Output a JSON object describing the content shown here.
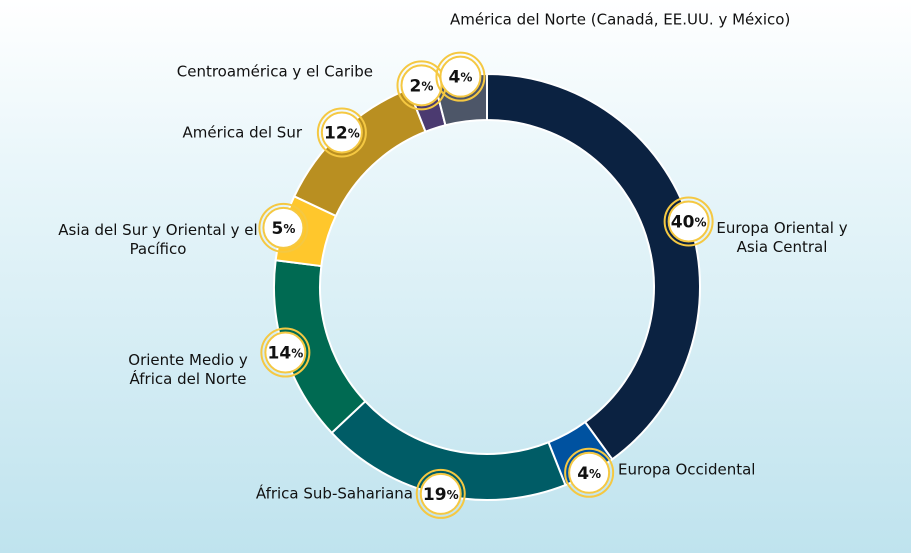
{
  "chart_data": {
    "type": "donut",
    "categories": [
      "Europa Oriental y Asia Central",
      "Europa Occidental",
      "África Sub-Sahariana",
      "Oriente Medio y África del Norte",
      "Asia del Sur y Oriental y el Pacífico",
      "América del Sur",
      "Centroamérica y el Caribe",
      "América del Norte (Canadá, EE.UU. y México)"
    ],
    "values": [
      40,
      4,
      19,
      14,
      5,
      12,
      2,
      4
    ],
    "value_labels": [
      "40%",
      "4%",
      "19%",
      "14%",
      "5%",
      "12%",
      "2%",
      "4%"
    ],
    "colors": [
      "#0b2241",
      "#0052a0",
      "#005c66",
      "#006a52",
      "#ffc72c",
      "#b98f21",
      "#4b3a70",
      "#4d5668"
    ]
  }
}
